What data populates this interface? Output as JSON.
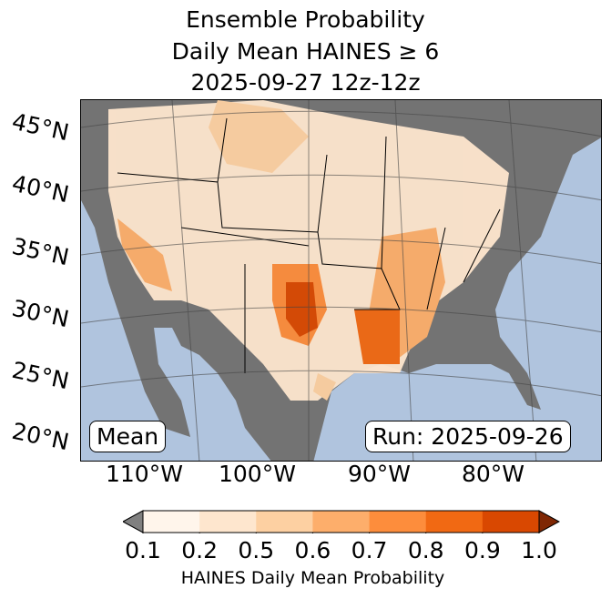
{
  "title": {
    "line1": "Ensemble Probability",
    "line2": "Daily Mean HAINES ≥ 6",
    "line3": "2025-09-27 12z-12z"
  },
  "map": {
    "lat_labels": [
      "45°N",
      "40°N",
      "35°N",
      "30°N",
      "25°N",
      "20°N"
    ],
    "lon_labels": [
      "110°W",
      "100°W",
      "90°W",
      "80°W"
    ],
    "stat_label": "Mean",
    "run_label": "Run: 2025-09-26",
    "colors": {
      "ocean": "#b0c4de",
      "land_below": "#737373"
    }
  },
  "colorbar": {
    "ticks": [
      "0.1",
      "0.2",
      "0.5",
      "0.6",
      "0.7",
      "0.8",
      "0.9",
      "1.0"
    ],
    "colors": [
      "#fff5eb",
      "#fee6ce",
      "#fdd0a2",
      "#fdae6b",
      "#fd8d3c",
      "#f16913",
      "#d94801"
    ],
    "under": "#808080",
    "over": "#7f2704",
    "label": "HAINES Daily Mean Probability"
  }
}
